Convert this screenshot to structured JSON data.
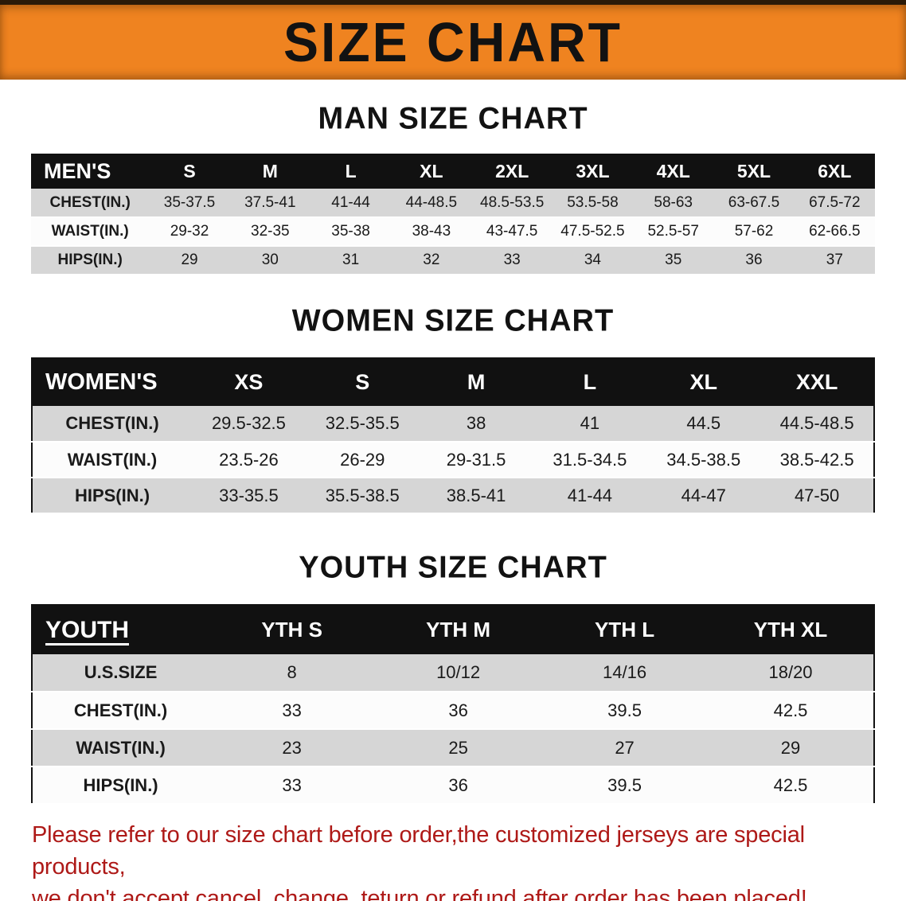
{
  "banner": {
    "title": "SIZE CHART"
  },
  "colors": {
    "banner_bg": "#ef8320",
    "banner_edge": "#2a1a08",
    "table_header_bg": "#111111",
    "row_gray": "#d6d6d6",
    "row_light": "#fcfcfc",
    "disclaimer_red": "#ae1917",
    "text_black": "#121212"
  },
  "sections": {
    "men": {
      "heading": "MAN SIZE CHART"
    },
    "women": {
      "heading": "WOMEN SIZE CHART"
    },
    "youth": {
      "heading": "YOUTH SIZE CHART"
    }
  },
  "tables": {
    "men": {
      "header": [
        "MEN'S",
        "S",
        "M",
        "L",
        "XL",
        "2XL",
        "3XL",
        "4XL",
        "5XL",
        "6XL"
      ],
      "rows": [
        [
          "CHEST(IN.)",
          "35-37.5",
          "37.5-41",
          "41-44",
          "44-48.5",
          "48.5-53.5",
          "53.5-58",
          "58-63",
          "63-67.5",
          "67.5-72"
        ],
        [
          "WAIST(IN.)",
          "29-32",
          "32-35",
          "35-38",
          "38-43",
          "43-47.5",
          "47.5-52.5",
          "52.5-57",
          "57-62",
          "62-66.5"
        ],
        [
          "HIPS(IN.)",
          "29",
          "30",
          "31",
          "32",
          "33",
          "34",
          "35",
          "36",
          "37"
        ]
      ]
    },
    "women": {
      "header": [
        "WOMEN'S",
        "XS",
        "S",
        "M",
        "L",
        "XL",
        "XXL"
      ],
      "rows": [
        [
          "CHEST(IN.)",
          "29.5-32.5",
          "32.5-35.5",
          "38",
          "41",
          "44.5",
          "44.5-48.5"
        ],
        [
          "WAIST(IN.)",
          "23.5-26",
          "26-29",
          "29-31.5",
          "31.5-34.5",
          "34.5-38.5",
          "38.5-42.5"
        ],
        [
          "HIPS(IN.)",
          "33-35.5",
          "35.5-38.5",
          "38.5-41",
          "41-44",
          "44-47",
          "47-50"
        ]
      ]
    },
    "youth": {
      "header": [
        "YOUTH",
        "YTH S",
        "YTH M",
        "YTH L",
        "YTH XL"
      ],
      "rows": [
        [
          "U.S.SIZE",
          "8",
          "10/12",
          "14/16",
          "18/20"
        ],
        [
          "CHEST(IN.)",
          "33",
          "36",
          "39.5",
          "42.5"
        ],
        [
          "WAIST(IN.)",
          "23",
          "25",
          "27",
          "29"
        ],
        [
          "HIPS(IN.)",
          "33",
          "36",
          "39.5",
          "42.5"
        ]
      ]
    }
  },
  "disclaimer": {
    "line1": "Please refer to our size chart before order,the customized jerseys are special products,",
    "line2": "we don't accept cancel, change, teturn or refund after order has been placed!"
  }
}
